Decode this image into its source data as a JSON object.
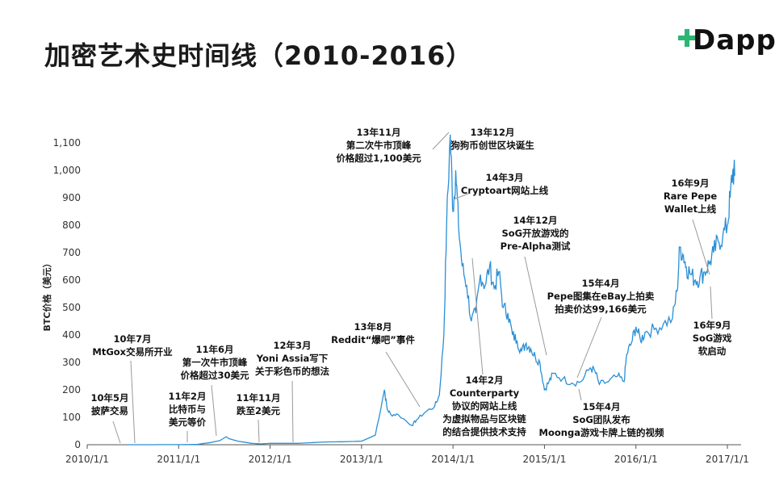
{
  "title": "加密艺术史时间线（2010-2016）",
  "logo": {
    "text": "Dapp",
    "accent": "#2bb673"
  },
  "chart_data": {
    "type": "line",
    "title": "",
    "xlabel": "",
    "ylabel": "BTC价格（美元）",
    "ylim": [
      0,
      1150
    ],
    "yticks": [
      "0",
      "100",
      "200",
      "300",
      "400",
      "500",
      "600",
      "700",
      "800",
      "900",
      "1,000",
      "1,100"
    ],
    "ytick_values": [
      0,
      100,
      200,
      300,
      400,
      500,
      600,
      700,
      800,
      900,
      1000,
      1100
    ],
    "xlim": [
      2010.0,
      2017.15
    ],
    "xticks": [
      "2010/1/1",
      "2011/1/1",
      "2012/1/1",
      "2013/1/1",
      "2014/1/1",
      "2015/1/1",
      "2016/1/1",
      "2017/1/1"
    ],
    "xtick_values": [
      2010,
      2011,
      2012,
      2013,
      2014,
      2015,
      2016,
      2017
    ],
    "line_color": "#2a8fd6",
    "series": [
      {
        "x": [
          2010.45,
          2010.6,
          2010.8,
          2011.0,
          2011.2,
          2011.35,
          2011.45,
          2011.52,
          2011.55,
          2011.65,
          2011.8,
          2011.9,
          2012.0,
          2012.3,
          2012.6,
          2012.8,
          2013.0,
          2013.15,
          2013.25,
          2013.28,
          2013.32,
          2013.4,
          2013.55,
          2013.6,
          2013.7,
          2013.8,
          2013.85,
          2013.9,
          2013.93,
          2013.97,
          2014.0,
          2014.03,
          2014.06,
          2014.1,
          2014.15,
          2014.2,
          2014.25,
          2014.3,
          2014.35,
          2014.4,
          2014.45,
          2014.5,
          2014.55,
          2014.6,
          2014.65,
          2014.7,
          2014.75,
          2014.8,
          2014.85,
          2014.9,
          2014.95,
          2015.0,
          2015.05,
          2015.1,
          2015.2,
          2015.3,
          2015.4,
          2015.5,
          2015.55,
          2015.6,
          2015.7,
          2015.8,
          2015.87,
          2015.9,
          2015.95,
          2016.0,
          2016.05,
          2016.1,
          2016.2,
          2016.3,
          2016.4,
          2016.45,
          2016.48,
          2016.52,
          2016.55,
          2016.6,
          2016.65,
          2016.7,
          2016.75,
          2016.8,
          2016.85,
          2016.9,
          2016.95,
          2017.0,
          2017.03,
          2017.06,
          2017.08
        ],
        "y": [
          0.1,
          0.06,
          0.2,
          0.3,
          1,
          8,
          15,
          29,
          22,
          13,
          5,
          3,
          5,
          5,
          10,
          11,
          13,
          35,
          200,
          130,
          110,
          110,
          70,
          90,
          120,
          140,
          180,
          400,
          800,
          1130,
          850,
          1000,
          800,
          650,
          580,
          450,
          480,
          620,
          580,
          650,
          570,
          630,
          500,
          480,
          400,
          380,
          340,
          370,
          350,
          320,
          300,
          200,
          230,
          260,
          240,
          225,
          230,
          280,
          270,
          220,
          230,
          250,
          230,
          330,
          370,
          430,
          380,
          410,
          420,
          440,
          460,
          560,
          720,
          690,
          650,
          620,
          600,
          610,
          630,
          660,
          700,
          740,
          760,
          800,
          900,
          1000,
          980
        ]
      }
    ],
    "annotations": [
      {
        "lines": [
          "10年5月",
          "披萨交易"
        ]
      },
      {
        "lines": [
          "10年7月",
          "MtGox交易所开业"
        ]
      },
      {
        "lines": [
          "11年2月",
          "比特币与",
          "美元等价"
        ]
      },
      {
        "lines": [
          "11年6月",
          "第一次牛市顶峰",
          "价格超过30美元"
        ]
      },
      {
        "lines": [
          "11年11月",
          "跌至2美元"
        ]
      },
      {
        "lines": [
          "12年3月",
          "Yoni Assia写下",
          "关于彩色币的想法"
        ]
      },
      {
        "lines": [
          "13年8月",
          "Reddit“爆吧”事件"
        ]
      },
      {
        "lines": [
          "13年11月",
          "第二次牛市顶峰",
          "价格超过1,100美元"
        ]
      },
      {
        "lines": [
          "13年12月",
          "狗狗币创世区块诞生"
        ]
      },
      {
        "lines": [
          "14年3月",
          "Cryptoart网站上线"
        ]
      },
      {
        "lines": [
          "14年2月",
          "Counterparty",
          "协议的网站上线",
          "为虚拟物品与区块链",
          "的结合提供技术支持"
        ]
      },
      {
        "lines": [
          "14年12月",
          "SoG开放游戏的",
          "Pre-Alpha测试"
        ]
      },
      {
        "lines": [
          "15年4月",
          "Pepe图集在eBay上拍卖",
          "拍卖价达99,166美元"
        ]
      },
      {
        "lines": [
          "15年4月",
          "SoG团队发布",
          "Moonga游戏卡牌上链的视频"
        ]
      },
      {
        "lines": [
          "16年9月",
          "Rare Pepe",
          "Wallet上线"
        ]
      },
      {
        "lines": [
          "16年9月",
          "SoG游戏",
          "软启动"
        ]
      }
    ]
  }
}
